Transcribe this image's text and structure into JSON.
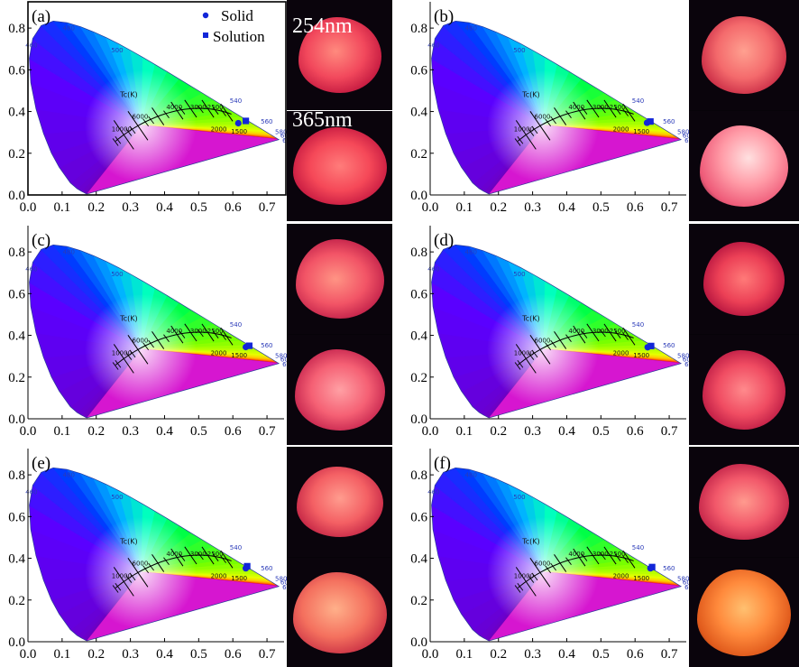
{
  "figure": {
    "legend": {
      "solid": "Solid",
      "solution": "Solution"
    },
    "excitation_labels": [
      "254nm",
      "365nm"
    ],
    "colors": {
      "marker": "#1226d8",
      "axis": "#000000",
      "wavelength_label": "#2a3ab8",
      "planck": "#000000"
    }
  },
  "chart_data": [
    {
      "type": "scatter",
      "label": "(a)",
      "xlim": [
        0,
        0.75
      ],
      "ylim": [
        0,
        0.9
      ],
      "xticks": [
        "0.0",
        "0.1",
        "0.2",
        "0.3",
        "0.4",
        "0.5",
        "0.6",
        "0.7"
      ],
      "yticks": [
        "0.0",
        "0.2",
        "0.4",
        "0.6",
        "0.8"
      ],
      "wavelength_labels": [
        "480",
        "500",
        "540",
        "560",
        "580",
        "600",
        "620",
        "460"
      ],
      "cct_title": "Tc(K)",
      "cct_labels": [
        "10000",
        "6000",
        "4000",
        "3000",
        "2500",
        "2000",
        "1500"
      ],
      "series": [
        {
          "name": "Solid",
          "marker": "circle",
          "x": [
            0.616
          ],
          "y": [
            0.344
          ]
        },
        {
          "name": "Solution",
          "marker": "square",
          "x": [
            0.638
          ],
          "y": [
            0.355
          ]
        }
      ]
    },
    {
      "type": "scatter",
      "label": "(b)",
      "xlim": [
        0,
        0.75
      ],
      "ylim": [
        0,
        0.9
      ],
      "xticks": [
        "0.0",
        "0.1",
        "0.2",
        "0.3",
        "0.4",
        "0.5",
        "0.6",
        "0.7"
      ],
      "yticks": [
        "0.0",
        "0.2",
        "0.4",
        "0.6",
        "0.8"
      ],
      "wavelength_labels": [
        "480",
        "500",
        "540",
        "560",
        "580",
        "600",
        "620",
        "460"
      ],
      "cct_title": "Tc(K)",
      "cct_labels": [
        "10000",
        "6000",
        "4000",
        "3000",
        "2500",
        "2000",
        "1500"
      ],
      "series": [
        {
          "name": "Solid",
          "marker": "circle",
          "x": [
            0.635
          ],
          "y": [
            0.346
          ]
        },
        {
          "name": "Solution",
          "marker": "square",
          "x": [
            0.645
          ],
          "y": [
            0.352
          ]
        }
      ]
    },
    {
      "type": "scatter",
      "label": "(c)",
      "xlim": [
        0,
        0.75
      ],
      "ylim": [
        0,
        0.9
      ],
      "xticks": [
        "0.0",
        "0.1",
        "0.2",
        "0.3",
        "0.4",
        "0.5",
        "0.6",
        "0.7"
      ],
      "yticks": [
        "0.0",
        "0.2",
        "0.4",
        "0.6",
        "0.8"
      ],
      "wavelength_labels": [
        "480",
        "500",
        "540",
        "560",
        "580",
        "600",
        "620",
        "460"
      ],
      "cct_title": "Tc(K)",
      "cct_labels": [
        "10000",
        "6000",
        "4000",
        "3000",
        "2500",
        "2000",
        "1500"
      ],
      "series": [
        {
          "name": "Solid",
          "marker": "circle",
          "x": [
            0.638
          ],
          "y": [
            0.344
          ]
        },
        {
          "name": "Solution",
          "marker": "square",
          "x": [
            0.648
          ],
          "y": [
            0.35
          ]
        }
      ]
    },
    {
      "type": "scatter",
      "label": "(d)",
      "xlim": [
        0,
        0.75
      ],
      "ylim": [
        0,
        0.9
      ],
      "xticks": [
        "0.0",
        "0.1",
        "0.2",
        "0.3",
        "0.4",
        "0.5",
        "0.6",
        "0.7"
      ],
      "yticks": [
        "0.0",
        "0.2",
        "0.4",
        "0.6",
        "0.8"
      ],
      "wavelength_labels": [
        "480",
        "500",
        "540",
        "560",
        "580",
        "600",
        "620",
        "460"
      ],
      "cct_title": "Tc(K)",
      "cct_labels": [
        "10000",
        "6000",
        "4000",
        "3000",
        "2500",
        "2000",
        "1500"
      ],
      "series": [
        {
          "name": "Solid",
          "marker": "circle",
          "x": [
            0.637
          ],
          "y": [
            0.343
          ]
        },
        {
          "name": "Solution",
          "marker": "square",
          "x": [
            0.647
          ],
          "y": [
            0.349
          ]
        }
      ]
    },
    {
      "type": "scatter",
      "label": "(e)",
      "xlim": [
        0,
        0.75
      ],
      "ylim": [
        0,
        0.9
      ],
      "xticks": [
        "0.0",
        "0.1",
        "0.2",
        "0.3",
        "0.4",
        "0.5",
        "0.6",
        "0.7"
      ],
      "yticks": [
        "0.0",
        "0.2",
        "0.4",
        "0.6",
        "0.8"
      ],
      "wavelength_labels": [
        "480",
        "500",
        "540",
        "560",
        "580",
        "600",
        "620",
        "460"
      ],
      "cct_title": "Tc(K)",
      "cct_labels": [
        "10000",
        "6000",
        "4000",
        "3000",
        "2500",
        "2000",
        "1500"
      ],
      "series": [
        {
          "name": "Solid",
          "marker": "circle",
          "x": [
            0.638
          ],
          "y": [
            0.352
          ]
        },
        {
          "name": "Solution",
          "marker": "square",
          "x": [
            0.642
          ],
          "y": [
            0.362
          ]
        }
      ]
    },
    {
      "type": "scatter",
      "label": "(f)",
      "xlim": [
        0,
        0.75
      ],
      "ylim": [
        0,
        0.9
      ],
      "xticks": [
        "0.0",
        "0.1",
        "0.2",
        "0.3",
        "0.4",
        "0.5",
        "0.6",
        "0.7"
      ],
      "yticks": [
        "0.0",
        "0.2",
        "0.4",
        "0.6",
        "0.8"
      ],
      "wavelength_labels": [
        "480",
        "500",
        "540",
        "560",
        "580",
        "600",
        "620",
        "460"
      ],
      "cct_title": "Tc(K)",
      "cct_labels": [
        "10000",
        "6000",
        "4000",
        "3000",
        "2500",
        "2000",
        "1500"
      ],
      "series": [
        {
          "name": "Solid",
          "marker": "circle",
          "x": [
            0.645
          ],
          "y": [
            0.352
          ]
        },
        {
          "name": "Solution",
          "marker": "square",
          "x": [
            0.65
          ],
          "y": [
            0.358
          ]
        }
      ]
    }
  ]
}
